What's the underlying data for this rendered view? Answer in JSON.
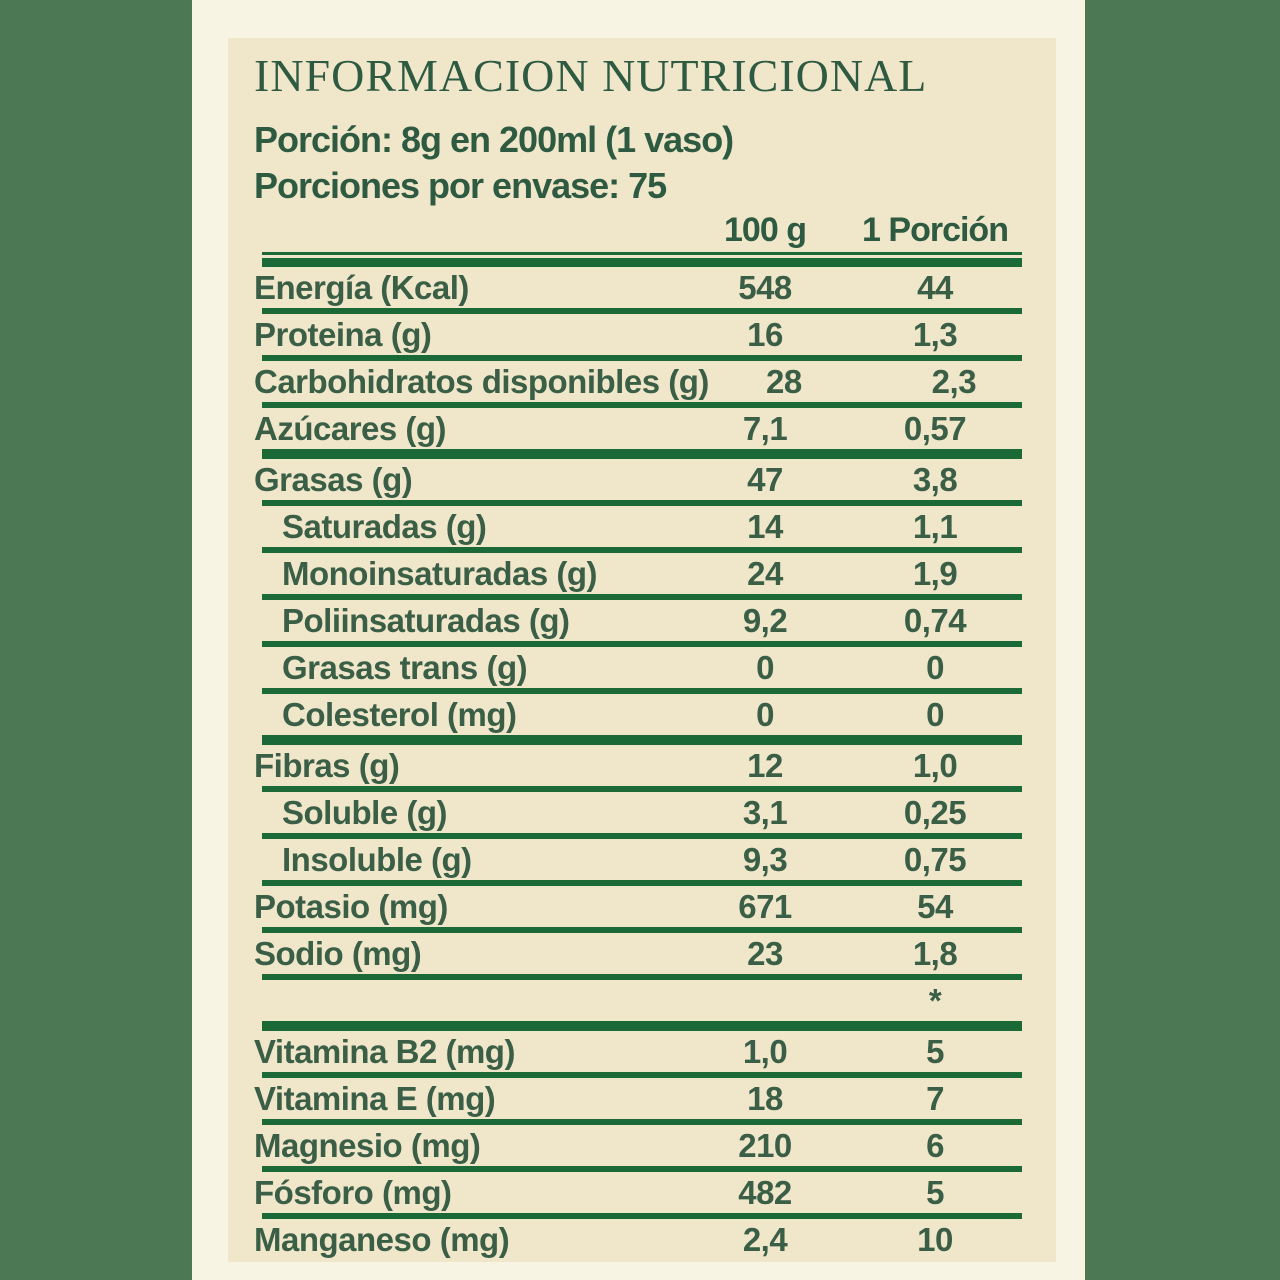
{
  "panel": {
    "title": "INFORMACION NUTRICIONAL",
    "serving_info": {
      "portion": "Porción: 8g en 200ml (1 vaso)",
      "servings_per_container": "Porciones por envase: 75"
    },
    "table": {
      "columns": [
        "100 g",
        "1 Porción"
      ],
      "footnote_marker": "*",
      "rows": [
        {
          "name": "Energía (Kcal)",
          "per_100g": "548",
          "per_serving": "44",
          "indent": false,
          "sep_after": "normal"
        },
        {
          "name": "Proteina (g)",
          "per_100g": "16",
          "per_serving": "1,3",
          "indent": false,
          "sep_after": "normal"
        },
        {
          "name": "Carbohidratos disponibles (g)",
          "per_100g": "28",
          "per_serving": "2,3",
          "indent": false,
          "sep_after": "normal"
        },
        {
          "name": "Azúcares (g)",
          "per_100g": "7,1",
          "per_serving": "0,57",
          "indent": false,
          "sep_after": "thick"
        },
        {
          "name": "Grasas (g)",
          "per_100g": "47",
          "per_serving": "3,8",
          "indent": false,
          "sep_after": "normal"
        },
        {
          "name": "Saturadas (g)",
          "per_100g": "14",
          "per_serving": "1,1",
          "indent": true,
          "sep_after": "normal"
        },
        {
          "name": "Monoinsaturadas (g)",
          "per_100g": "24",
          "per_serving": "1,9",
          "indent": true,
          "sep_after": "normal"
        },
        {
          "name": "Poliinsaturadas (g)",
          "per_100g": "9,2",
          "per_serving": "0,74",
          "indent": true,
          "sep_after": "normal"
        },
        {
          "name": "Grasas trans (g)",
          "per_100g": "0",
          "per_serving": "0",
          "indent": true,
          "sep_after": "normal"
        },
        {
          "name": "Colesterol (mg)",
          "per_100g": "0",
          "per_serving": "0",
          "indent": true,
          "sep_after": "thick"
        },
        {
          "name": "Fibras (g)",
          "per_100g": "12",
          "per_serving": "1,0",
          "indent": false,
          "sep_after": "normal"
        },
        {
          "name": "Soluble (g)",
          "per_100g": "3,1",
          "per_serving": "0,25",
          "indent": true,
          "sep_after": "normal"
        },
        {
          "name": "Insoluble (g)",
          "per_100g": "9,3",
          "per_serving": "0,75",
          "indent": true,
          "sep_after": "normal"
        },
        {
          "name": "Potasio (mg)",
          "per_100g": "671",
          "per_serving": "54",
          "indent": false,
          "sep_after": "normal"
        },
        {
          "name": "Sodio (mg)",
          "per_100g": "23",
          "per_serving": "1,8",
          "indent": false,
          "sep_after": "normal"
        },
        {
          "name": "",
          "per_100g": "",
          "per_serving": "*",
          "indent": false,
          "sep_after": "thick"
        },
        {
          "name": "Vitamina B2 (mg)",
          "per_100g": "1,0",
          "per_serving": "5",
          "indent": false,
          "sep_after": "normal"
        },
        {
          "name": "Vitamina E (mg)",
          "per_100g": "18",
          "per_serving": "7",
          "indent": false,
          "sep_after": "normal"
        },
        {
          "name": "Magnesio (mg)",
          "per_100g": "210",
          "per_serving": "6",
          "indent": false,
          "sep_after": "normal"
        },
        {
          "name": "Fósforo (mg)",
          "per_100g": "482",
          "per_serving": "5",
          "indent": false,
          "sep_after": "normal"
        },
        {
          "name": "Manganeso (mg)",
          "per_100g": "2,4",
          "per_serving": "10",
          "indent": false,
          "sep_after": "none"
        }
      ]
    },
    "colors": {
      "bg-green": "#4d7854",
      "outer-cream": "#f8f4e3",
      "panel-cream": "#f0e7cb",
      "rule-green": "#1c6938",
      "text-green": "#3a5f46",
      "title-green": "#2e5a41"
    }
  }
}
